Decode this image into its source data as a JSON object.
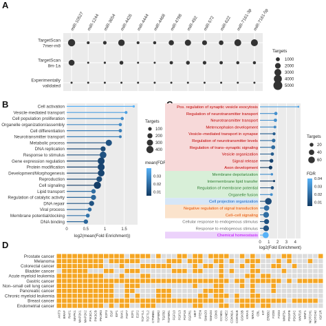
{
  "panels": {
    "a": "A",
    "b": "B",
    "c": "C",
    "d": "D"
  },
  "panel_a": {
    "columns": [
      "miR-10527",
      "miR-1244",
      "miR-3654",
      "miR-4426",
      "miR-4444",
      "miR-4468",
      "miR-4788",
      "miR-492",
      "miR-572",
      "miR-622",
      "miR-7161-3p",
      "miR-7161-5p"
    ],
    "rows": [
      "TargetScan\n7mer-m8",
      "TargetScan\n8m-1a",
      "Experimentally\nvalidated"
    ],
    "legend_title": "Targets",
    "legend_values": [
      "1000",
      "2000",
      "3000",
      "4000",
      "5000"
    ],
    "legend_numbers": [
      1000,
      2000,
      3000,
      4000,
      5000
    ],
    "values": [
      [
        3200,
        500,
        800,
        2600,
        500,
        600,
        1700,
        2400,
        1500,
        1300,
        2900,
        3000
      ],
      [
        2200,
        250,
        300,
        900,
        250,
        250,
        700,
        900,
        800,
        700,
        600,
        600
      ],
      [
        100,
        50,
        60,
        100,
        30,
        40,
        80,
        60,
        60,
        60,
        50,
        50
      ]
    ]
  },
  "panel_b": {
    "chart_data": {
      "type": "scatter",
      "categories": [
        "Cell activation",
        "Vesicle-mediated transport",
        "Cell population proliferation",
        "Organelle organization/assembly",
        "Cell differentiation",
        "Neurotransmitter transport",
        "Metabolic process",
        "DNA replication",
        "Response to stimulus",
        "Gene expression regulation",
        "Protein modification",
        "Development/Morphogenesis",
        "Reproduction",
        "Cell signaling",
        "Lipid transport",
        "Regulation of catalytic activity",
        "DNA repair",
        "Viral process",
        "Membrane potential/docking",
        "DNA binding"
      ],
      "values": [
        1.75,
        1.55,
        1.45,
        1.4,
        1.4,
        1.4,
        1.1,
        0.95,
        0.95,
        0.9,
        0.9,
        0.9,
        0.85,
        0.8,
        0.7,
        0.7,
        0.65,
        0.6,
        0.55,
        0.5
      ],
      "sizes": [
        40,
        60,
        80,
        80,
        90,
        60,
        300,
        200,
        350,
        380,
        380,
        350,
        250,
        400,
        150,
        200,
        200,
        120,
        120,
        150
      ],
      "fdr": [
        0.04,
        0.035,
        0.03,
        0.028,
        0.025,
        0.025,
        0.012,
        0.01,
        0.012,
        0.008,
        0.008,
        0.008,
        0.01,
        0.006,
        0.02,
        0.018,
        0.012,
        0.02,
        0.022,
        0.018
      ],
      "xlabel": "log2(mean(Fold Enrichment))",
      "xticks": [
        0,
        0.5,
        1,
        1.5
      ],
      "xlim": [
        0,
        1.85
      ],
      "legend_size_title": "Targets",
      "legend_sizes": [
        "100",
        "200",
        "300",
        "400"
      ],
      "legend_size_values": [
        100,
        200,
        300,
        400
      ],
      "legend_color_title": "mean(FDR)",
      "legend_colors": [
        "0.03",
        "0.02",
        "0.01"
      ],
      "legend_color_values": [
        0.03,
        0.02,
        0.01
      ]
    }
  },
  "panel_c": {
    "chart_data": {
      "type": "scatter",
      "categories": [
        "Pos. regulation of synaptic vesicle exocytosis",
        "Regulation of neurotransmitter transport",
        "Neurotransmitter transport",
        "Metencephalon development",
        "Vesicle–mediated transport in synapse",
        "Regulation of neurotransmitter levels",
        "Regulation of trans–synaptic signaling",
        "Vesicle organization",
        "Signal release",
        "Axon development",
        "Membrane depolarization",
        "Intermembrane lipid transfer",
        "Regulation of membrane potential",
        "Organelle fusion",
        "Cell projection organization",
        "Negative regulation of signal transduction",
        "Cell–cell signaling",
        "Cellular response to endogenous stimulus",
        "Response to endogenous stimulus",
        "Chemical homeostasis"
      ],
      "values": [
        4.35,
        1.8,
        1.75,
        1.7,
        1.6,
        1.55,
        1.5,
        1.4,
        1.3,
        1.2,
        1.35,
        1.6,
        1.4,
        1.3,
        0.95,
        0.75,
        0.7,
        0.75,
        0.7,
        0.65
      ],
      "sizes": [
        5,
        15,
        15,
        10,
        12,
        18,
        22,
        15,
        20,
        18,
        8,
        6,
        14,
        10,
        60,
        40,
        45,
        35,
        45,
        50
      ],
      "fdr": [
        0.035,
        0.03,
        0.03,
        0.028,
        0.015,
        0.02,
        0.02,
        0.015,
        0.008,
        0.005,
        0.03,
        0.005,
        0.012,
        0.03,
        0.01,
        0.02,
        0.02,
        0.012,
        0.012,
        0.04
      ],
      "groups": [
        "red",
        "red",
        "red",
        "red",
        "red",
        "red",
        "red",
        "red",
        "red",
        "red",
        "green",
        "green",
        "green",
        "green",
        "blue",
        "orange",
        "orange",
        "gray",
        "gray",
        "purple"
      ],
      "xlabel": "log2(Fold Enrichment)",
      "xticks": [
        0,
        1,
        2,
        3,
        4
      ],
      "xlim": [
        0,
        4.6
      ],
      "legend_size_title": "Targets",
      "legend_sizes": [
        "20",
        "40",
        "60"
      ],
      "legend_size_values": [
        20,
        40,
        60
      ],
      "legend_color_title": "FDR",
      "legend_colors": [
        "0.04",
        "0.03",
        "0.02",
        "0.01"
      ],
      "legend_color_values": [
        0.04,
        0.03,
        0.02,
        0.01
      ]
    }
  },
  "panel_d": {
    "chart_data": {
      "type": "heatmap",
      "rows": [
        "Prostate cancer",
        "Melanoma",
        "Colorectal cancer",
        "Bladder cancer",
        "Acute myeloid leukemia",
        "Gastric cancer",
        "Non–small cell lung cancer",
        "Pancreatic cancer",
        "Chronic myeloid leukemia",
        "Breast cancer",
        "Endometrial cancer"
      ],
      "columns": [
        "AKT3",
        "BRAF",
        "RAF1",
        "MAPK1",
        "MAP2K1",
        "MAP2K2",
        "PIK3CA",
        "PIK3CB",
        "PIK3R3",
        "E2F3",
        "EGF",
        "IGF1",
        "BAK1",
        "FGF7",
        "E2F1",
        "E2F2",
        "TCF7L1",
        "TCF7L2",
        "CTNNB1",
        "TGFBR2",
        "TGFB2",
        "TGFBR1",
        "FGF10",
        "FGF13",
        "FGF18",
        "FGFR1",
        "MET",
        "PTEN",
        "SMAD3",
        "SMAD4",
        "CDK6",
        "CCND1",
        "CCNE2",
        "CDKN1A",
        "CDKN1B",
        "GSK3B",
        "KRAS",
        "NRAS",
        "CBL",
        "KIT",
        "ERBB2",
        "FZD8",
        "FZD3",
        "WNT5A",
        "PDGFB",
        "PDGFC",
        "WNT16",
        "WNT1",
        "NOTCH1",
        "NOTCH2",
        "IGF1R"
      ],
      "on_color": "#f5a623",
      "off_color": "#dcdcdc",
      "matrix": [
        [
          1,
          1,
          1,
          1,
          1,
          1,
          1,
          1,
          1,
          1,
          1,
          1,
          1,
          0,
          1,
          1,
          1,
          1,
          0,
          1,
          0,
          0,
          0,
          1,
          1,
          0,
          1,
          1,
          0,
          1,
          1,
          1,
          1,
          0,
          0,
          1,
          0,
          1,
          0,
          0,
          1,
          0,
          0,
          1,
          1,
          0,
          0,
          0,
          0,
          0,
          1
        ],
        [
          1,
          1,
          1,
          1,
          1,
          1,
          1,
          1,
          1,
          0,
          1,
          1,
          1,
          1,
          1,
          1,
          0,
          0,
          0,
          0,
          0,
          1,
          1,
          1,
          0,
          1,
          1,
          1,
          0,
          0,
          1,
          1,
          0,
          1,
          0,
          0,
          1,
          1,
          1,
          0,
          0,
          0,
          1,
          0,
          1,
          0,
          0,
          0,
          1,
          0,
          0
        ],
        [
          1,
          1,
          1,
          1,
          1,
          1,
          1,
          1,
          1,
          0,
          0,
          0,
          1,
          0,
          0,
          0,
          1,
          1,
          1,
          1,
          1,
          1,
          0,
          0,
          0,
          0,
          1,
          0,
          1,
          1,
          0,
          1,
          0,
          0,
          0,
          1,
          0,
          1,
          0,
          0,
          0,
          1,
          1,
          0,
          0,
          1,
          0,
          0,
          0,
          0,
          0
        ],
        [
          0,
          1,
          1,
          1,
          1,
          1,
          0,
          0,
          0,
          1,
          1,
          0,
          0,
          1,
          1,
          1,
          0,
          0,
          0,
          0,
          0,
          0,
          1,
          1,
          1,
          0,
          1,
          1,
          0,
          0,
          0,
          1,
          0,
          1,
          0,
          0,
          0,
          1,
          1,
          0,
          0,
          0,
          0,
          1,
          0,
          0,
          0,
          0,
          0,
          0,
          0
        ],
        [
          1,
          1,
          1,
          1,
          1,
          1,
          1,
          1,
          1,
          0,
          0,
          0,
          1,
          0,
          0,
          0,
          1,
          1,
          0,
          0,
          0,
          0,
          0,
          0,
          0,
          0,
          0,
          0,
          0,
          0,
          0,
          1,
          0,
          0,
          0,
          0,
          1,
          1,
          0,
          1,
          1,
          0,
          0,
          0,
          0,
          0,
          0,
          0,
          0,
          0,
          0
        ],
        [
          1,
          1,
          1,
          1,
          1,
          1,
          1,
          1,
          1,
          1,
          1,
          1,
          1,
          1,
          1,
          1,
          1,
          1,
          1,
          1,
          1,
          1,
          1,
          1,
          1,
          1,
          1,
          1,
          1,
          1,
          1,
          1,
          1,
          0,
          1,
          1,
          0,
          1,
          1,
          1,
          1,
          1,
          1,
          0,
          1,
          0,
          1,
          1,
          1,
          1,
          1
        ],
        [
          1,
          1,
          1,
          1,
          1,
          1,
          1,
          1,
          1,
          1,
          1,
          0,
          0,
          1,
          1,
          1,
          0,
          0,
          0,
          0,
          0,
          0,
          0,
          0,
          0,
          0,
          1,
          0,
          0,
          0,
          1,
          1,
          0,
          0,
          0,
          1,
          0,
          1,
          0,
          0,
          0,
          1,
          0,
          0,
          0,
          0,
          0,
          0,
          0,
          0,
          0
        ],
        [
          1,
          1,
          1,
          1,
          1,
          1,
          1,
          1,
          1,
          1,
          1,
          0,
          0,
          1,
          1,
          0,
          0,
          0,
          0,
          1,
          1,
          1,
          0,
          0,
          0,
          0,
          0,
          0,
          1,
          1,
          1,
          1,
          0,
          0,
          0,
          0,
          0,
          1,
          0,
          0,
          0,
          1,
          0,
          0,
          0,
          0,
          0,
          0,
          0,
          0,
          0
        ],
        [
          1,
          1,
          1,
          1,
          1,
          1,
          1,
          1,
          1,
          1,
          1,
          0,
          0,
          1,
          0,
          1,
          0,
          0,
          0,
          1,
          1,
          1,
          0,
          0,
          0,
          0,
          0,
          1,
          1,
          0,
          1,
          1,
          1,
          0,
          1,
          0,
          0,
          1,
          1,
          0,
          0,
          0,
          0,
          0,
          0,
          0,
          0,
          0,
          0,
          0,
          0
        ],
        [
          1,
          1,
          1,
          1,
          1,
          1,
          1,
          1,
          1,
          1,
          1,
          1,
          1,
          1,
          1,
          1,
          1,
          1,
          1,
          1,
          1,
          1,
          1,
          1,
          1,
          1,
          1,
          1,
          1,
          1,
          1,
          1,
          0,
          0,
          1,
          1,
          1,
          1,
          1,
          1,
          1,
          1,
          1,
          1,
          0,
          1,
          1,
          1,
          1,
          1,
          0
        ],
        [
          1,
          1,
          1,
          1,
          1,
          1,
          1,
          1,
          1,
          0,
          1,
          0,
          1,
          1,
          0,
          0,
          1,
          1,
          1,
          0,
          0,
          0,
          0,
          0,
          0,
          0,
          1,
          1,
          0,
          0,
          0,
          1,
          1,
          0,
          0,
          1,
          1,
          1,
          0,
          1,
          1,
          0,
          0,
          0,
          0,
          0,
          0,
          0,
          0,
          0,
          0
        ]
      ]
    }
  },
  "colors": {
    "panel_bg": "#ebebeb",
    "dot": "#333333",
    "fdr_low": "#123a63",
    "fdr_high": "#56b1f7",
    "heat_on": "#f5a623",
    "heat_off": "#dcdcdc",
    "c_red": "#c00000",
    "c_green": "#2e7d32",
    "c_blue": "#1565c0",
    "c_orange": "#e65100",
    "c_gray": "#666666",
    "c_purple": "#c000ff"
  }
}
